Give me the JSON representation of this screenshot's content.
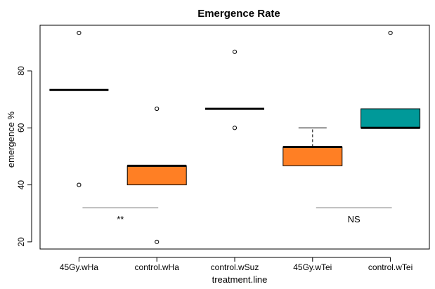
{
  "chart_data": {
    "type": "box",
    "title": "Emergence Rate",
    "xlabel": "treatment.line",
    "ylabel": "emergence %",
    "yticks": [
      20,
      40,
      60,
      80
    ],
    "ylim": [
      17.5,
      96
    ],
    "categories": [
      "45Gy.wHa",
      "control.wHa",
      "control.wSuz",
      "45Gy.wTei",
      "control.wTei"
    ],
    "boxes": [
      {
        "category": "45Gy.wHa",
        "q1": 73.3,
        "median": 73.3,
        "q3": 73.3,
        "whisker_low": 73.3,
        "whisker_high": 73.3,
        "outliers": [
          93.3,
          40
        ],
        "fill": "#ffffff"
      },
      {
        "category": "control.wHa",
        "q1": 40,
        "median": 46.7,
        "q3": 46.7,
        "whisker_low": 40,
        "whisker_high": 46.7,
        "outliers": [
          66.7,
          20
        ],
        "fill": "#ff7f24"
      },
      {
        "category": "control.wSuz",
        "q1": 66.7,
        "median": 66.7,
        "q3": 66.7,
        "whisker_low": 66.7,
        "whisker_high": 66.7,
        "outliers": [
          86.7,
          60
        ],
        "fill": "#ffffff"
      },
      {
        "category": "45Gy.wTei",
        "q1": 46.7,
        "median": 53.3,
        "q3": 53.3,
        "whisker_low": 46.7,
        "whisker_high": 60,
        "outliers": [],
        "fill": "#ff7f24"
      },
      {
        "category": "control.wTei",
        "q1": 60,
        "median": 60,
        "q3": 66.7,
        "whisker_low": 60,
        "whisker_high": 66.7,
        "outliers": [
          93.3
        ],
        "fill": "#009999"
      }
    ],
    "annotations": [
      {
        "text": "**",
        "from": "45Gy.wHa",
        "to": "control.wHa",
        "y": 32
      },
      {
        "text": "NS",
        "from": "45Gy.wTei",
        "to": "control.wTei",
        "y": 32
      }
    ],
    "grid": false,
    "legend": "none"
  }
}
